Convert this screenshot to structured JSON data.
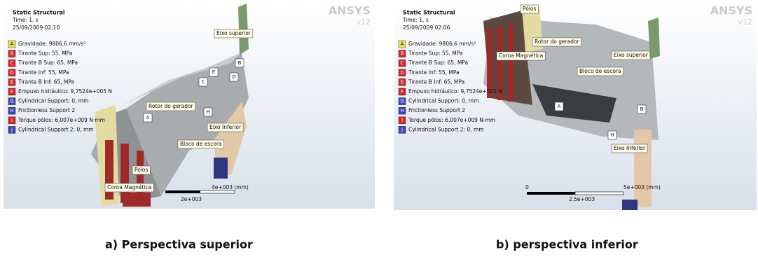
{
  "panels": [
    {
      "header": {
        "title": "Static Structural",
        "time": "Time: 1, s",
        "date": "25/09/2009 02:10"
      },
      "logo": {
        "brand": "ANSYS",
        "version": "v12"
      },
      "legend": [
        {
          "letter": "A",
          "text": "Gravidade: 9806,6 mm/s²",
          "color": "#f2e35a"
        },
        {
          "letter": "B",
          "text": "Tirante Sup: 55, MPa",
          "color": "#d8262b"
        },
        {
          "letter": "C",
          "text": "Tirante B Sup: 65, MPa",
          "color": "#d8262b"
        },
        {
          "letter": "D",
          "text": "Tirante Inf: 55, MPa",
          "color": "#d8262b"
        },
        {
          "letter": "E",
          "text": "Tirante B Inf: 65, MPa",
          "color": "#d8262b"
        },
        {
          "letter": "F",
          "text": "Empuxo hidráulico: 9,7524e+005 N",
          "color": "#d8262b"
        },
        {
          "letter": "G",
          "text": "Cylindrical Support: 0, mm",
          "color": "#3b46b8"
        },
        {
          "letter": "H",
          "text": "Frictionless Support 2",
          "color": "#3b46b8"
        },
        {
          "letter": "I",
          "text": "Torque pólos: 6,007e+009 N·mm",
          "color": "#d8262b"
        },
        {
          "letter": "J",
          "text": "Cylindrical Support 2: 0, mm",
          "color": "#3b46b8"
        }
      ],
      "labels": [
        "Eixo superior",
        "Rotor do gerador",
        "Eixo Inferior",
        "Bloco de escora",
        "Pólos",
        "Coroa Magnética"
      ],
      "markers": [
        "A",
        "B",
        "C",
        "D",
        "E",
        "H"
      ],
      "scale": [
        "4e+003 (mm)",
        "2e+003"
      ],
      "caption": "a) Perspectiva superior"
    },
    {
      "header": {
        "title": "Static Structural",
        "time": "Time: 1, s",
        "date": "25/09/2009 02:06"
      },
      "logo": {
        "brand": "ANSYS",
        "version": "v12"
      },
      "legend": [
        {
          "letter": "A",
          "text": "Gravidade: 9806,6 mm/s²",
          "color": "#f2e35a"
        },
        {
          "letter": "B",
          "text": "Tirante Sup: 55, MPa",
          "color": "#d8262b"
        },
        {
          "letter": "C",
          "text": "Tirante B Sup: 65, MPa",
          "color": "#d8262b"
        },
        {
          "letter": "D",
          "text": "Tirante Inf: 55, MPa",
          "color": "#d8262b"
        },
        {
          "letter": "E",
          "text": "Tirante B Inf: 65, MPa",
          "color": "#d8262b"
        },
        {
          "letter": "F",
          "text": "Empuxo hidráulico: 9,7524e+005 N",
          "color": "#d8262b"
        },
        {
          "letter": "G",
          "text": "Cylindrical Support: 0, mm",
          "color": "#3b46b8"
        },
        {
          "letter": "H",
          "text": "Frictionless Support 2",
          "color": "#3b46b8"
        },
        {
          "letter": "I",
          "text": "Torque pólos: 6,007e+009 N-mm",
          "color": "#d8262b"
        },
        {
          "letter": "J",
          "text": "Cylindrical Support 2: 0, mm",
          "color": "#3b46b8"
        }
      ],
      "labels": [
        "Pólos",
        "Rotor do gerador",
        "Coroa Magnética",
        "Eixo superior",
        "Bloco de escora",
        "Eixo Inferior"
      ],
      "markers": [
        "A",
        "B",
        "H"
      ],
      "scale": [
        "0",
        "5e+003 (mm)",
        "2.5e+003"
      ],
      "caption": "b) perspectiva inferior"
    }
  ]
}
